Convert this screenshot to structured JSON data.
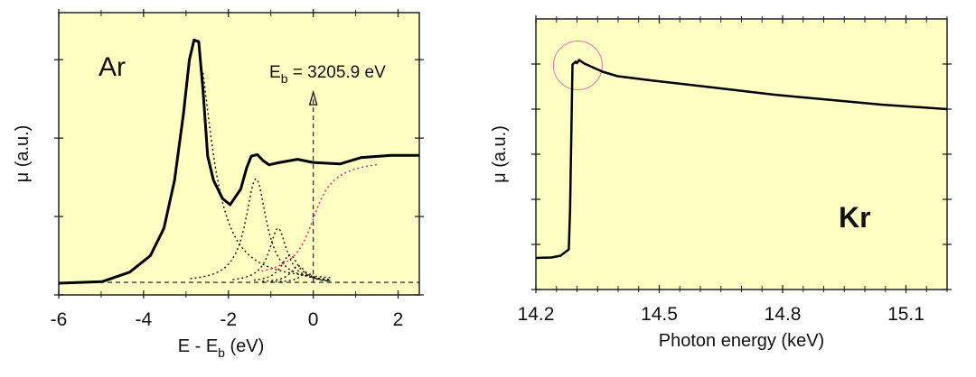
{
  "colors": {
    "plot_bg": "#ffffc4",
    "curve": "#000000",
    "step": "#e8306a",
    "circle": "#d87aa0"
  },
  "chart_data": [
    {
      "type": "line",
      "element_label": "Ar",
      "xlabel_main": "E - E",
      "xlabel_sub": "b",
      "xlabel_tail": " (eV)",
      "ylabel": "μ (a.u.)",
      "xlim": [
        -6,
        2.5
      ],
      "ylim": [
        0,
        3.6
      ],
      "xticks": [
        -6,
        -4,
        -2,
        0,
        2
      ],
      "xtick_labels": [
        "-6",
        "-4",
        "-2",
        "0",
        "2"
      ],
      "yticks": [
        1,
        2,
        3
      ],
      "annotation": {
        "main": "E",
        "sub": "b",
        "tail": " = 3205.9 eV",
        "x": 0,
        "arrow_top_y": 2.54
      },
      "baseline": 0.16,
      "series": [
        {
          "name": "measured",
          "style": "solid",
          "x": [
            -6,
            -4.97,
            -4.33,
            -3.84,
            -3.52,
            -3.27,
            -3.06,
            -2.92,
            -2.81,
            -2.7,
            -2.6,
            -2.49,
            -2.35,
            -2.14,
            -1.96,
            -1.71,
            -1.57,
            -1.46,
            -1.32,
            -1.18,
            -1.04,
            -0.79,
            -0.37,
            -0.01,
            0.63,
            1.12,
            1.83,
            2.5
          ],
          "y": [
            0.15,
            0.17,
            0.29,
            0.5,
            0.85,
            1.46,
            2.31,
            3.0,
            3.25,
            3.23,
            2.62,
            1.77,
            1.46,
            1.23,
            1.15,
            1.35,
            1.62,
            1.77,
            1.79,
            1.71,
            1.66,
            1.69,
            1.73,
            1.69,
            1.67,
            1.75,
            1.78,
            1.78
          ]
        }
      ],
      "lorentzian_components": [
        {
          "center": -2.78,
          "amplitude": 3.1,
          "hwhm": 0.45,
          "from": -2.6,
          "to": 0.4
        },
        {
          "center": -1.35,
          "amplitude": 1.32,
          "hwhm": 0.3,
          "from": -2.9,
          "to": 0.4
        },
        {
          "center": -0.83,
          "amplitude": 0.69,
          "hwhm": 0.25,
          "from": -1.9,
          "to": 0.4
        },
        {
          "center": -0.55,
          "amplitude": 0.35,
          "hwhm": 0.25,
          "from": -1.4,
          "to": 0.4
        },
        {
          "center": -0.35,
          "amplitude": 0.21,
          "hwhm": 0.22,
          "from": -1.2,
          "to": 0.4
        },
        {
          "center": -0.15,
          "amplitude": 0.12,
          "hwhm": 0.2,
          "from": -1.0,
          "to": 0.4
        }
      ],
      "arctan_step": {
        "center": 0,
        "height": 1.62,
        "width": 0.35,
        "from": -1.22,
        "to": 1.5
      }
    },
    {
      "type": "line",
      "element_label": "Kr",
      "xlabel": "Photon energy (keV)",
      "ylabel": "μ (a.u.)",
      "xlim": [
        14.2,
        15.2
      ],
      "ylim": [
        0,
        6
      ],
      "xticks": [
        14.2,
        14.5,
        14.8,
        15.1
      ],
      "xtick_labels": [
        "14.2",
        "14.5",
        "14.8",
        "15.1"
      ],
      "minor_xtick_step": 0.05,
      "yticks": [
        1,
        2,
        3,
        4,
        5
      ],
      "highlight_circle": {
        "x": 14.302,
        "y": 4.97
      },
      "series": [
        {
          "name": "measured",
          "style": "solid",
          "x": [
            14.2,
            14.238,
            14.26,
            14.28,
            14.283,
            14.289,
            14.297,
            14.3,
            14.305,
            14.318,
            14.362,
            14.399,
            14.487,
            14.64,
            14.78,
            14.91,
            15.04,
            15.2
          ],
          "y": [
            0.7,
            0.71,
            0.75,
            0.89,
            1.75,
            4.99,
            5.05,
            5.02,
            5.09,
            5.01,
            4.83,
            4.73,
            4.63,
            4.47,
            4.32,
            4.21,
            4.1,
            4.0
          ]
        }
      ]
    }
  ]
}
